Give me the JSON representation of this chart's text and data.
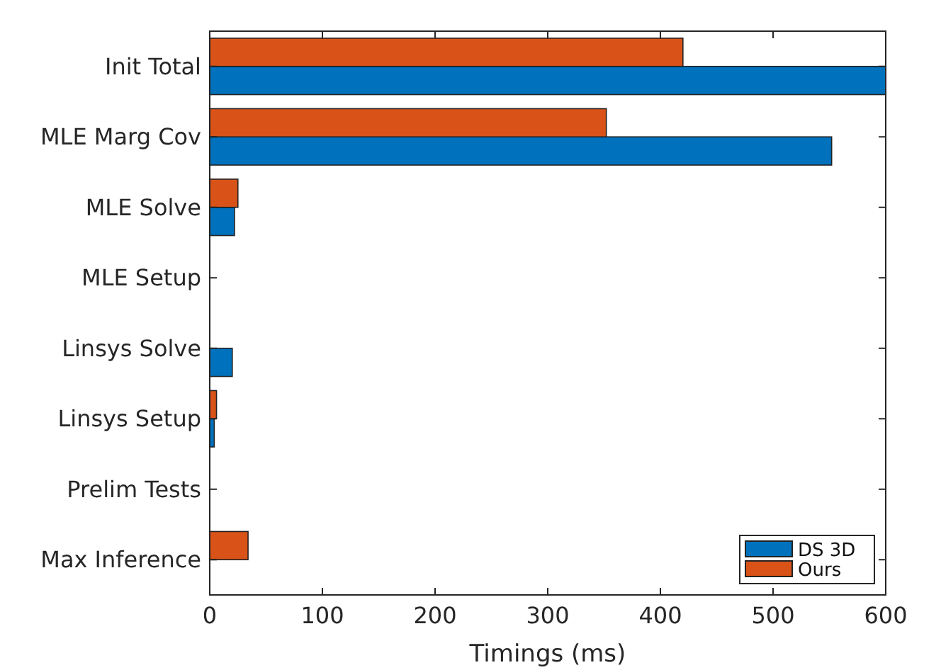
{
  "chart_data": {
    "type": "bar",
    "orientation": "horizontal",
    "xlabel": "Timings (ms)",
    "categories": [
      "Init Total",
      "MLE Marg Cov",
      "MLE Solve",
      "MLE Setup",
      "Linsys Solve",
      "Linsys Setup",
      "Prelim Tests",
      "Max Inference"
    ],
    "series": [
      {
        "name": "DS 3D",
        "color": "#0072bd",
        "values": [
          600,
          552,
          22,
          0,
          20,
          4,
          0,
          0
        ]
      },
      {
        "name": "Ours",
        "color": "#d95319",
        "values": [
          420,
          352,
          25,
          0,
          0,
          6,
          0,
          34
        ]
      }
    ],
    "xlim": [
      0,
      600
    ],
    "xticks": [
      0,
      100,
      200,
      300,
      400,
      500,
      600
    ],
    "legend": "bottom right",
    "grid": false
  }
}
